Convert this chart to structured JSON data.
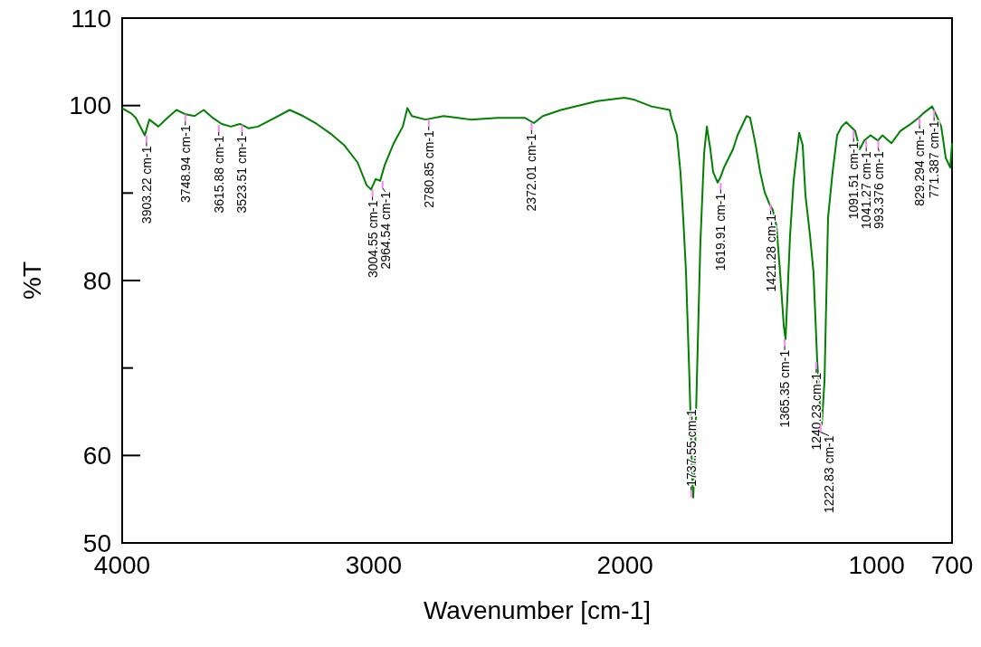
{
  "chart_data": {
    "type": "line",
    "xlabel": "Wavenumber [cm-1]",
    "ylabel": "%T",
    "xlim": [
      4000,
      700
    ],
    "xticks": [
      4000,
      3000,
      2000,
      1000,
      700
    ],
    "ylim": [
      50,
      110
    ],
    "yticks": [
      50,
      60,
      {
        "value": 70,
        "label": null
      },
      80,
      {
        "value": 90,
        "label": null
      },
      100,
      110
    ],
    "grid": false,
    "marker": "none",
    "line_style": "solid",
    "series": [
      {
        "color": "#008000",
        "x": [
          4000,
          3964,
          3946,
          3910,
          3892,
          3856,
          3820,
          3784,
          3748,
          3712,
          3676,
          3640,
          3604,
          3568,
          3532,
          3496,
          3460,
          3406,
          3334,
          3280,
          3226,
          3172,
          3118,
          3064,
          3028,
          3010,
          2992,
          2974,
          2956,
          2920,
          2884,
          2866,
          2848,
          2794,
          2722,
          2615,
          2507,
          2399,
          2363,
          2327,
          2255,
          2111,
          2003,
          1967,
          1895,
          1823,
          1816,
          1794,
          1780,
          1769,
          1758,
          1744,
          1733,
          1729,
          1722,
          1711,
          1701,
          1686,
          1675,
          1661,
          1650,
          1632,
          1621,
          1607,
          1571,
          1553,
          1517,
          1503,
          1481,
          1463,
          1445,
          1427,
          1413,
          1398,
          1384,
          1369,
          1362,
          1355,
          1344,
          1330,
          1308,
          1294,
          1283,
          1265,
          1251,
          1236,
          1225,
          1218,
          1207,
          1193,
          1175,
          1157,
          1139,
          1121,
          1085,
          1067,
          1049,
          1024,
          995,
          977,
          941,
          905,
          869,
          833,
          815,
          779,
          761,
          743,
          725,
          707,
          700
        ],
        "values": [
          99.7,
          99.1,
          98.6,
          96.6,
          98.4,
          97.6,
          98.6,
          99.5,
          99.0,
          98.8,
          99.5,
          98.6,
          97.9,
          97.6,
          97.9,
          97.4,
          97.6,
          98.4,
          99.5,
          98.8,
          97.9,
          96.8,
          95.5,
          93.5,
          90.9,
          90.4,
          91.6,
          91.4,
          93.2,
          95.7,
          97.6,
          99.7,
          98.8,
          98.4,
          98.8,
          98.4,
          98.6,
          98.6,
          98.0,
          98.8,
          99.5,
          100.5,
          100.9,
          100.7,
          99.9,
          99.5,
          98.6,
          96.6,
          92.4,
          87.2,
          81.0,
          68.6,
          57.3,
          55.2,
          60.4,
          72.8,
          84.1,
          94.5,
          97.6,
          95.0,
          92.4,
          91.2,
          91.8,
          92.9,
          95.0,
          96.6,
          98.8,
          98.6,
          95.5,
          92.4,
          90.1,
          88.8,
          88.1,
          86.2,
          81.0,
          74.8,
          73.3,
          77.9,
          85.2,
          91.4,
          96.9,
          95.5,
          89.8,
          85.2,
          81.0,
          70.7,
          65.5,
          63.5,
          68.6,
          87.2,
          92.4,
          96.6,
          97.6,
          98.1,
          97.1,
          95.0,
          96.0,
          96.6,
          96.0,
          96.6,
          95.7,
          97.1,
          97.8,
          98.6,
          99.1,
          99.9,
          98.8,
          97.6,
          94.0,
          92.9,
          95.7
        ]
      }
    ],
    "annotations": [
      {
        "text": "3903.22 cm-1",
        "x": 3903.22,
        "y": 96.6
      },
      {
        "text": "3748.94 cm-1",
        "x": 3748.94,
        "y": 99.0
      },
      {
        "text": "3615.88 cm-1",
        "x": 3615.88,
        "y": 97.8
      },
      {
        "text": "3523.51 cm-1",
        "x": 3523.51,
        "y": 97.8
      },
      {
        "text": "3004.55 cm-1",
        "x": 3004.55,
        "y": 90.4
      },
      {
        "text": "2964.54 cm-1",
        "x": 2964.54,
        "y": 91.4
      },
      {
        "text": "2780.85 cm-1",
        "x": 2780.85,
        "y": 98.4
      },
      {
        "text": "2372.01 cm-1",
        "x": 2372.01,
        "y": 98.0
      },
      {
        "text": "1737.55 cm-1",
        "x": 1737.55,
        "y": 55.2
      },
      {
        "text": "1619.91 cm-1",
        "x": 1619.91,
        "y": 91.2
      },
      {
        "text": "1421.28 cm-1",
        "x": 1421.28,
        "y": 88.8
      },
      {
        "text": "1365.35 cm-1",
        "x": 1365.35,
        "y": 73.3
      },
      {
        "text": "1240.23 cm-1",
        "x": 1240.23,
        "y": 70.7
      },
      {
        "text": "1222.83 cm-1",
        "x": 1222.83,
        "y": 63.5
      },
      {
        "text": "1091.51 cm-1",
        "x": 1091.51,
        "y": 97.1
      },
      {
        "text": "1041.27 cm-1",
        "x": 1041.27,
        "y": 96.0
      },
      {
        "text": "993.376 cm-1",
        "x": 993.376,
        "y": 96.0
      },
      {
        "text": "829.294 cm-1",
        "x": 829.294,
        "y": 98.6
      },
      {
        "text": "771.387 cm-1",
        "x": 771.387,
        "y": 99.5
      }
    ]
  }
}
